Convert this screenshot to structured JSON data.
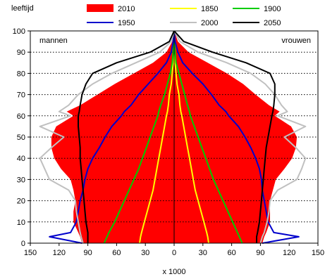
{
  "chart_data": {
    "type": "area",
    "title": "",
    "ylabel": "leeftijd",
    "xlabel": "x 1000",
    "xlim": [
      -150,
      150
    ],
    "ylim": [
      0,
      100
    ],
    "x_ticks": [
      150,
      120,
      90,
      60,
      30,
      0,
      30,
      60,
      90,
      120,
      150
    ],
    "y_ticks": [
      0,
      10,
      20,
      30,
      40,
      50,
      60,
      70,
      80,
      90,
      100
    ],
    "grid": "horizontal-dotted",
    "legend_position": "top",
    "left_label": "mannen",
    "right_label": "vrouwen",
    "ages": [
      0,
      3,
      5,
      10,
      15,
      20,
      25,
      30,
      35,
      40,
      45,
      50,
      55,
      60,
      62,
      65,
      70,
      75,
      80,
      85,
      90,
      95,
      100
    ],
    "series": [
      {
        "name": "2010",
        "style": "fill",
        "color": "#ff0000",
        "men": [
          96,
          98,
          100,
          105,
          105,
          103,
          105,
          108,
          118,
          125,
          128,
          128,
          123,
          105,
          112,
          98,
          80,
          62,
          42,
          22,
          8,
          2,
          0
        ],
        "women": [
          92,
          94,
          96,
          100,
          100,
          100,
          103,
          106,
          115,
          123,
          127,
          128,
          122,
          105,
          110,
          99,
          85,
          72,
          55,
          35,
          15,
          4,
          0
        ]
      },
      {
        "name": "1850",
        "style": "line",
        "color": "#ffff00",
        "men": [
          36,
          35,
          34,
          31,
          28,
          25,
          22,
          20,
          18,
          16,
          14,
          12,
          10,
          8,
          7,
          6,
          5,
          3,
          2,
          1,
          0,
          0,
          0
        ],
        "women": [
          36,
          35,
          34,
          31,
          28,
          25,
          22,
          20,
          18,
          16,
          14,
          12,
          10,
          8,
          7,
          6,
          5,
          3,
          2,
          1,
          0,
          0,
          0
        ]
      },
      {
        "name": "1900",
        "style": "line",
        "color": "#00cc00",
        "men": [
          73,
          70,
          68,
          62,
          57,
          52,
          47,
          42,
          37,
          33,
          29,
          25,
          21,
          17,
          16,
          14,
          10,
          7,
          4,
          2,
          1,
          0,
          0
        ],
        "women": [
          71,
          68,
          66,
          61,
          56,
          51,
          46,
          41,
          37,
          33,
          29,
          25,
          21,
          17,
          16,
          14,
          11,
          8,
          5,
          2,
          1,
          0,
          0
        ]
      },
      {
        "name": "1950",
        "style": "line",
        "color": "#0000cc",
        "men": [
          96,
          130,
          108,
          102,
          100,
          98,
          95,
          93,
          90,
          85,
          78,
          72,
          65,
          55,
          52,
          45,
          37,
          27,
          17,
          8,
          3,
          1,
          0
        ],
        "women": [
          92,
          130,
          104,
          98,
          96,
          94,
          92,
          91,
          89,
          85,
          80,
          74,
          67,
          57,
          54,
          47,
          39,
          30,
          19,
          9,
          4,
          1,
          0
        ]
      },
      {
        "name": "2000",
        "style": "line",
        "color": "#c0c0c0",
        "men": [
          95,
          97,
          98,
          100,
          102,
          103,
          110,
          130,
          135,
          140,
          128,
          115,
          140,
          108,
          120,
          110,
          100,
          85,
          65,
          40,
          15,
          3,
          0
        ],
        "women": [
          90,
          92,
          94,
          97,
          99,
          100,
          108,
          128,
          133,
          137,
          127,
          115,
          137,
          108,
          118,
          112,
          105,
          95,
          80,
          55,
          25,
          6,
          0
        ]
      },
      {
        "name": "2050",
        "style": "line",
        "color": "#000000",
        "men": [
          90,
          90,
          90,
          92,
          93,
          94,
          95,
          96,
          97,
          98,
          98,
          99,
          100,
          100,
          99,
          98,
          96,
          92,
          85,
          60,
          25,
          5,
          0
        ],
        "women": [
          86,
          86,
          87,
          89,
          90,
          91,
          92,
          93,
          94,
          95,
          96,
          98,
          100,
          102,
          103,
          104,
          105,
          105,
          100,
          75,
          40,
          10,
          0
        ]
      }
    ]
  }
}
